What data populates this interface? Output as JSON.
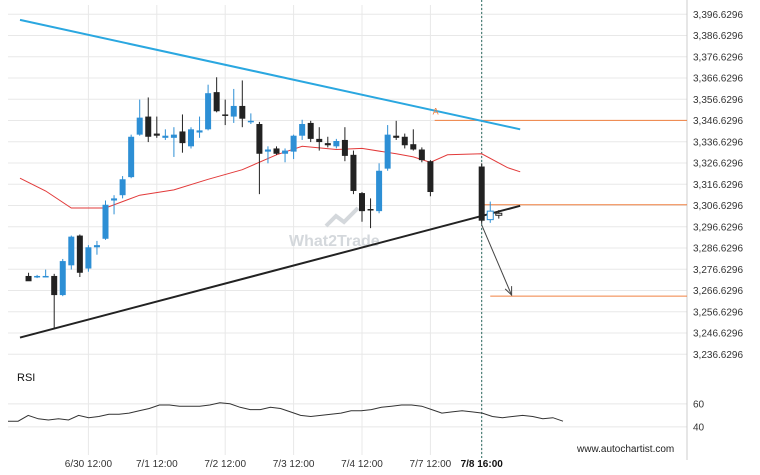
{
  "chart_data": {
    "type": "candlestick",
    "title": "",
    "y_ticks": [
      "3,396.6296",
      "3,386.6296",
      "3,376.6296",
      "3,366.6296",
      "3,356.6296",
      "3,346.6296",
      "3,336.6296",
      "3,326.6296",
      "3,316.6296",
      "3,306.6296",
      "3,296.6296",
      "3,286.6296",
      "3,276.6296",
      "3,266.6296",
      "3,256.6296",
      "3,246.6296",
      "3,236.6296"
    ],
    "y_tick_values": [
      3396.6296,
      3386.6296,
      3376.6296,
      3366.6296,
      3356.6296,
      3346.6296,
      3336.6296,
      3326.6296,
      3316.6296,
      3306.6296,
      3296.6296,
      3286.6296,
      3276.6296,
      3266.6296,
      3256.6296,
      3246.6296,
      3236.6296
    ],
    "ylim": [
      3231.6,
      3401.0
    ],
    "x_labels": [
      {
        "label": "6/30 12:00",
        "bar": 8
      },
      {
        "label": "7/1 12:00",
        "bar": 16
      },
      {
        "label": "7/2 12:00",
        "bar": 24
      },
      {
        "label": "7/3 12:00",
        "bar": 32
      },
      {
        "label": "7/4 12:00",
        "bar": 40
      },
      {
        "label": "7/7 12:00",
        "bar": 48
      },
      {
        "label": "7/8 16:00",
        "bar": 54,
        "bold": true
      }
    ],
    "candles": [
      {
        "o": 3273.5,
        "h": 3275.0,
        "l": 3272.5,
        "c": 3271.0
      },
      {
        "o": 3273.5,
        "h": 3274.0,
        "l": 3272.5,
        "c": 3273.5
      },
      {
        "o": 3273.5,
        "h": 3276.5,
        "l": 3273.0,
        "c": 3273.5
      },
      {
        "o": 3273.5,
        "h": 3274.5,
        "l": 3249.0,
        "c": 3264.5
      },
      {
        "o": 3264.5,
        "h": 3281.5,
        "l": 3264.0,
        "c": 3280.5
      },
      {
        "o": 3278.5,
        "h": 3292.5,
        "l": 3276.5,
        "c": 3292.0
      },
      {
        "o": 3292.5,
        "h": 3293.0,
        "l": 3273.0,
        "c": 3275.0
      },
      {
        "o": 3277.0,
        "h": 3288.0,
        "l": 3275.5,
        "c": 3287.0
      },
      {
        "o": 3287.0,
        "h": 3290.0,
        "l": 3283.5,
        "c": 3288.0
      },
      {
        "o": 3291.0,
        "h": 3309.0,
        "l": 3290.5,
        "c": 3307.0
      },
      {
        "o": 3309.0,
        "h": 3311.5,
        "l": 3302.5,
        "c": 3310.0
      },
      {
        "o": 3311.5,
        "h": 3320.5,
        "l": 3310.0,
        "c": 3319.0
      },
      {
        "o": 3320.0,
        "h": 3340.0,
        "l": 3319.5,
        "c": 3339.0
      },
      {
        "o": 3340.0,
        "h": 3356.5,
        "l": 3339.5,
        "c": 3348.0
      },
      {
        "o": 3348.5,
        "h": 3357.5,
        "l": 3336.5,
        "c": 3339.0
      },
      {
        "o": 3340.5,
        "h": 3348.5,
        "l": 3338.5,
        "c": 3339.5
      },
      {
        "o": 3338.5,
        "h": 3342.5,
        "l": 3337.5,
        "c": 3339.5
      },
      {
        "o": 3338.5,
        "h": 3343.5,
        "l": 3329.5,
        "c": 3340.0
      },
      {
        "o": 3341.5,
        "h": 3349.5,
        "l": 3331.5,
        "c": 3336.0
      },
      {
        "o": 3334.5,
        "h": 3343.5,
        "l": 3333.5,
        "c": 3342.5
      },
      {
        "o": 3341.0,
        "h": 3348.5,
        "l": 3338.5,
        "c": 3342.0
      },
      {
        "o": 3342.5,
        "h": 3363.5,
        "l": 3342.0,
        "c": 3359.5
      },
      {
        "o": 3360.0,
        "h": 3367.0,
        "l": 3350.5,
        "c": 3351.0
      },
      {
        "o": 3349.5,
        "h": 3356.5,
        "l": 3344.5,
        "c": 3349.0
      },
      {
        "o": 3348.5,
        "h": 3361.5,
        "l": 3345.5,
        "c": 3353.5
      },
      {
        "o": 3353.5,
        "h": 3365.5,
        "l": 3343.5,
        "c": 3347.5
      },
      {
        "o": 3346.0,
        "h": 3350.0,
        "l": 3345.0,
        "c": 3346.5
      },
      {
        "o": 3345.0,
        "h": 3346.0,
        "l": 3312.0,
        "c": 3331.0
      },
      {
        "o": 3332.0,
        "h": 3334.5,
        "l": 3326.5,
        "c": 3333.0
      },
      {
        "o": 3333.5,
        "h": 3334.5,
        "l": 3330.5,
        "c": 3331.0
      },
      {
        "o": 3331.0,
        "h": 3333.5,
        "l": 3327.0,
        "c": 3332.5
      },
      {
        "o": 3332.0,
        "h": 3340.0,
        "l": 3328.5,
        "c": 3339.5
      },
      {
        "o": 3339.5,
        "h": 3347.0,
        "l": 3337.5,
        "c": 3345.0
      },
      {
        "o": 3345.5,
        "h": 3346.5,
        "l": 3336.5,
        "c": 3338.0
      },
      {
        "o": 3338.0,
        "h": 3343.5,
        "l": 3332.5,
        "c": 3336.5
      },
      {
        "o": 3336.0,
        "h": 3339.0,
        "l": 3334.0,
        "c": 3335.0
      },
      {
        "o": 3334.5,
        "h": 3338.0,
        "l": 3333.5,
        "c": 3337.0
      },
      {
        "o": 3337.5,
        "h": 3343.5,
        "l": 3327.5,
        "c": 3330.0
      },
      {
        "o": 3330.5,
        "h": 3332.5,
        "l": 3312.0,
        "c": 3313.5
      },
      {
        "o": 3312.5,
        "h": 3313.0,
        "l": 3299.0,
        "c": 3304.0
      },
      {
        "o": 3305.0,
        "h": 3310.0,
        "l": 3296.0,
        "c": 3304.5
      },
      {
        "o": 3304.0,
        "h": 3326.5,
        "l": 3303.0,
        "c": 3323.0
      },
      {
        "o": 3324.0,
        "h": 3344.5,
        "l": 3323.0,
        "c": 3340.0
      },
      {
        "o": 3339.5,
        "h": 3346.5,
        "l": 3337.5,
        "c": 3338.5
      },
      {
        "o": 3339.0,
        "h": 3340.5,
        "l": 3333.5,
        "c": 3335.0
      },
      {
        "o": 3335.5,
        "h": 3342.5,
        "l": 3332.5,
        "c": 3333.0
      },
      {
        "o": 3333.0,
        "h": 3334.0,
        "l": 3327.0,
        "c": 3328.0
      },
      {
        "o": 3327.5,
        "h": 3328.0,
        "l": 3311.0,
        "c": 3313.0
      }
    ],
    "candle_bar_offset": 1,
    "last_candle": {
      "bar": 54,
      "o": 3325.0,
      "h": 3326.5,
      "l": 3298.0,
      "c": 3299.5
    },
    "pending_candle": {
      "bar": 55,
      "o": 3300.0,
      "h": 3308.5,
      "l": 3298.5,
      "c": 3304.0
    },
    "tiny_candle": {
      "bar": 56,
      "o": 3303.0,
      "h": 3304.5,
      "l": 3300.5,
      "c": 3302.5
    },
    "moving_average": {
      "color": "#e23a3a",
      "points": [
        [
          0,
          3319.5
        ],
        [
          3,
          3313.5
        ],
        [
          6,
          3305.5
        ],
        [
          10,
          3305.5
        ],
        [
          14,
          3311.5
        ],
        [
          18,
          3314.0
        ],
        [
          22,
          3319.0
        ],
        [
          26,
          3323.5
        ],
        [
          30,
          3330.5
        ],
        [
          33,
          3334.5
        ],
        [
          37,
          3333.0
        ],
        [
          40,
          3333.5
        ],
        [
          44,
          3331.0
        ],
        [
          46,
          3329.5
        ],
        [
          48,
          3327.0
        ],
        [
          50,
          3330.5
        ],
        [
          54,
          3331.0
        ],
        [
          57,
          3324.5
        ],
        [
          58.5,
          3322.5
        ]
      ]
    },
    "upper_trendline": {
      "color": "#2aa7e0",
      "from": [
        0,
        3394.0
      ],
      "to": [
        58.5,
        3342.5
      ]
    },
    "lower_trendline": {
      "color": "#222222",
      "from": [
        0,
        3244.5
      ],
      "to": [
        58.5,
        3306.5
      ]
    },
    "resistance_level": {
      "color": "#f08040",
      "value": 3346.7,
      "from_bar": 48.5
    },
    "forecast_level": {
      "color": "#f08040",
      "value": 3264.0,
      "from_bar": 55
    },
    "forecast_arrow": {
      "color": "#444444",
      "from": [
        54,
        3297.5
      ],
      "to": [
        57.5,
        3264.5
      ]
    },
    "price_line": {
      "color": "#f08040",
      "value": 3307.0,
      "from_bar": 54
    },
    "current_marker_bar": 54,
    "annotation_label": {
      "text": "A",
      "bar": 48.5,
      "value": 3349.5
    },
    "colors": {
      "up": "#2d8fd5",
      "down": "#222222",
      "grid": "#e8e8e8"
    },
    "rsi": {
      "title": "RSI",
      "ticks": [
        60,
        40
      ],
      "ylim": [
        33,
        72
      ],
      "color": "#333333",
      "values": [
        45,
        45,
        50,
        47,
        46,
        47,
        46,
        50,
        48,
        49,
        51,
        51,
        52,
        54,
        56,
        59,
        59,
        58,
        58,
        58,
        59,
        61,
        60,
        57,
        55,
        55,
        57,
        56,
        53,
        50,
        49,
        50,
        51,
        52,
        54,
        54,
        55,
        57,
        58,
        59,
        59,
        58,
        55,
        52,
        53,
        54,
        53,
        52,
        49,
        48,
        49,
        50,
        49,
        47,
        48,
        45
      ]
    }
  },
  "watermark": "What2Trade",
  "footer": "www.autochartist.com"
}
